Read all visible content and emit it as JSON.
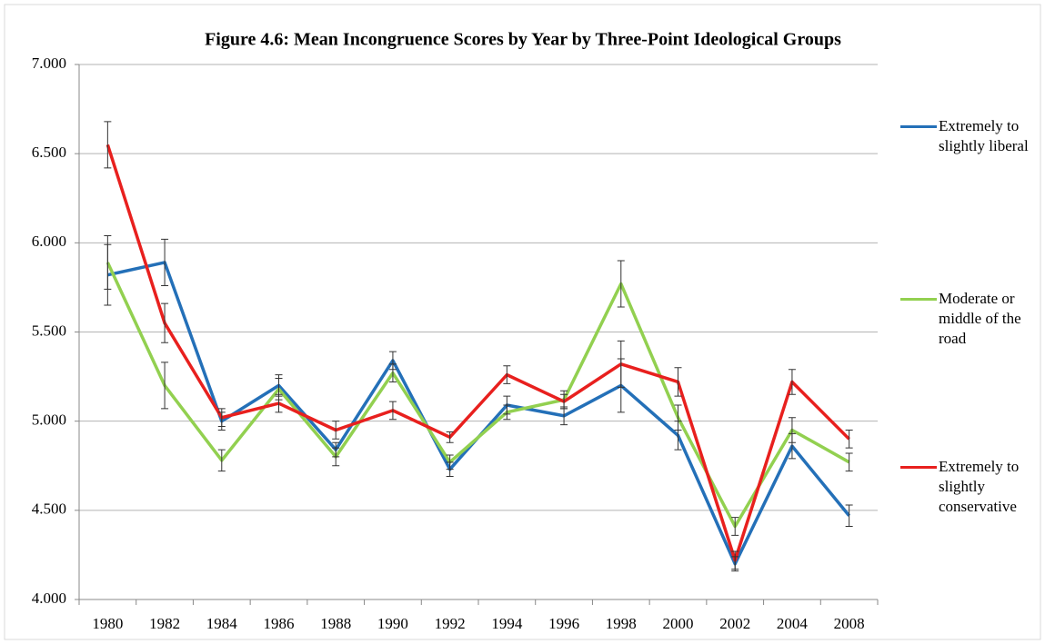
{
  "chart_data": {
    "type": "line",
    "title": "Figure 4.6: Mean Incongruence Scores by Year by Three-Point Ideological Groups",
    "categories": [
      "1980",
      "1982",
      "1984",
      "1986",
      "1988",
      "1990",
      "1992",
      "1994",
      "1996",
      "1998",
      "2000",
      "2002",
      "2004",
      "2008"
    ],
    "series": [
      {
        "name": "Extremely to slightly liberal",
        "color": "#2470b8",
        "values": [
          5.82,
          5.89,
          5.0,
          5.2,
          4.84,
          5.34,
          4.73,
          5.09,
          5.03,
          5.2,
          4.92,
          4.2,
          4.86,
          4.47
        ],
        "errors": [
          0.17,
          0.13,
          0.05,
          0.06,
          0.04,
          0.05,
          0.04,
          0.05,
          0.05,
          0.15,
          0.08,
          0.04,
          0.07,
          0.06
        ]
      },
      {
        "name": "Moderate or middle of the road",
        "color": "#92d050",
        "values": [
          5.89,
          5.2,
          4.78,
          5.18,
          4.8,
          5.27,
          4.77,
          5.05,
          5.12,
          5.77,
          5.02,
          4.41,
          4.95,
          4.77
        ],
        "errors": [
          0.15,
          0.13,
          0.06,
          0.06,
          0.05,
          0.05,
          0.04,
          0.04,
          0.05,
          0.13,
          0.07,
          0.05,
          0.07,
          0.05
        ]
      },
      {
        "name": "Extremely to slightly conservative",
        "color": "#e8201e",
        "values": [
          6.55,
          5.55,
          5.02,
          5.1,
          4.95,
          5.06,
          4.91,
          5.26,
          5.11,
          5.32,
          5.22,
          4.22,
          5.22,
          4.9
        ],
        "errors": [
          0.13,
          0.11,
          0.05,
          0.05,
          0.05,
          0.05,
          0.03,
          0.05,
          0.04,
          0.13,
          0.08,
          0.05,
          0.07,
          0.05
        ]
      }
    ],
    "ylim": [
      4,
      7
    ],
    "yticks": [
      {
        "value": 4,
        "label": "4.000"
      },
      {
        "value": 4.5,
        "label": "4.500"
      },
      {
        "value": 5,
        "label": "5.000"
      },
      {
        "value": 5.5,
        "label": "5.500"
      },
      {
        "value": 6,
        "label": "6.000"
      },
      {
        "value": 6.5,
        "label": "6.500"
      },
      {
        "value": 7,
        "label": "7.000"
      }
    ],
    "grid": true
  }
}
